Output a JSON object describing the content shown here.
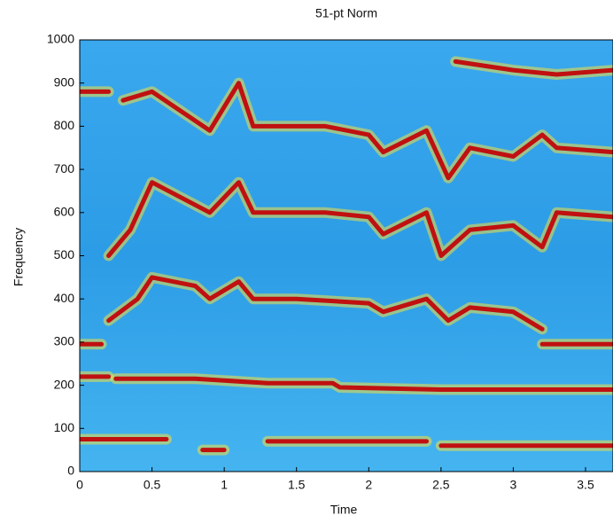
{
  "chart_data": {
    "type": "spectrogram",
    "title": "51-pt Norm",
    "xlabel": "Time",
    "ylabel": "Frequency",
    "xlim": [
      0,
      3.69
    ],
    "ylim": [
      0,
      1000
    ],
    "xticks": [
      0,
      0.5,
      1,
      1.5,
      2,
      2.5,
      3,
      3.5
    ],
    "yticks": [
      0,
      100,
      200,
      300,
      400,
      500,
      600,
      700,
      800,
      900,
      1000
    ],
    "background": "#2c9ce6",
    "halo_color": "#f0e040",
    "series": [
      {
        "color": "#c01010",
        "x": [
          0,
          0.6,
          null,
          0.85,
          1.0,
          null,
          1.3,
          2.4,
          null,
          2.5,
          3.69
        ],
        "values": [
          75,
          75,
          null,
          50,
          50,
          null,
          70,
          70,
          null,
          60,
          60
        ]
      },
      {
        "color": "#c01010",
        "x": [
          0,
          0.2,
          null,
          0.25,
          0.8,
          1.3,
          1.75,
          1.8,
          2.5,
          3.69
        ],
        "values": [
          220,
          220,
          null,
          215,
          215,
          205,
          205,
          195,
          190,
          190
        ]
      },
      {
        "color": "#c01010",
        "x": [
          0,
          0.15,
          null,
          3.2,
          3.69
        ],
        "values": [
          295,
          295,
          null,
          295,
          295
        ]
      },
      {
        "color": "#c01010",
        "x": [
          0.2,
          0.4,
          0.5,
          0.8,
          0.9,
          1.1,
          1.2,
          1.5,
          2.0,
          2.1,
          2.4,
          2.55,
          2.7,
          3.0,
          3.2
        ],
        "values": [
          350,
          400,
          450,
          430,
          400,
          440,
          400,
          400,
          390,
          370,
          400,
          350,
          380,
          370,
          330
        ]
      },
      {
        "color": "#c01010",
        "x": [
          0.2,
          0.35,
          0.5,
          0.9,
          1.1,
          1.2,
          1.7,
          2.0,
          2.1,
          2.4,
          2.5,
          2.7,
          3.0,
          3.2,
          3.3,
          3.69
        ],
        "values": [
          500,
          560,
          670,
          600,
          670,
          600,
          600,
          590,
          550,
          600,
          500,
          560,
          570,
          520,
          600,
          590
        ]
      },
      {
        "color": "#c01010",
        "x": [
          0.3,
          0.5,
          0.9,
          1.1,
          1.2,
          1.7,
          2.0,
          2.1,
          2.4,
          2.55,
          2.7,
          3.0,
          3.2,
          3.3,
          3.69
        ],
        "values": [
          860,
          880,
          790,
          900,
          800,
          800,
          780,
          740,
          790,
          680,
          750,
          730,
          780,
          750,
          740
        ]
      },
      {
        "color": "#c01010",
        "x": [
          0,
          0.2,
          null,
          2.6,
          3.0,
          3.3,
          3.69
        ],
        "values": [
          880,
          880,
          null,
          950,
          930,
          920,
          930
        ]
      }
    ]
  }
}
